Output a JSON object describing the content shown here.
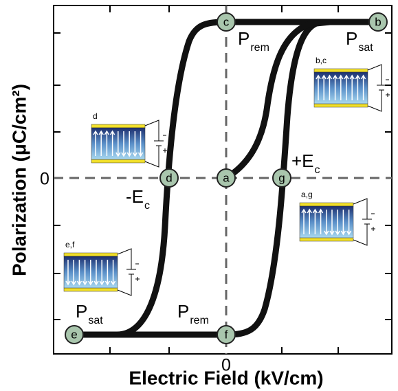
{
  "axes": {
    "x_label": "Electric Field (kV/cm)",
    "y_label": "Polarization (μC/cm²)",
    "x_zero": "0",
    "y_zero": "0"
  },
  "points": [
    {
      "label": "a"
    },
    {
      "label": "b"
    },
    {
      "label": "c"
    },
    {
      "label": "d"
    },
    {
      "label": "e"
    },
    {
      "label": "f"
    },
    {
      "label": "g"
    }
  ],
  "annotations": [
    {
      "main": "P",
      "sub": "rem"
    },
    {
      "main": "P",
      "sub": "sat"
    },
    {
      "main": "-E",
      "sub": "c"
    },
    {
      "main": "+E",
      "sub": "c"
    },
    {
      "main": "P",
      "sub": "sat"
    },
    {
      "main": "P",
      "sub": "rem"
    }
  ],
  "insets": [
    {
      "label": "d"
    },
    {
      "label": "b,c"
    },
    {
      "label": "a,g"
    },
    {
      "label": "e,f"
    }
  ]
}
